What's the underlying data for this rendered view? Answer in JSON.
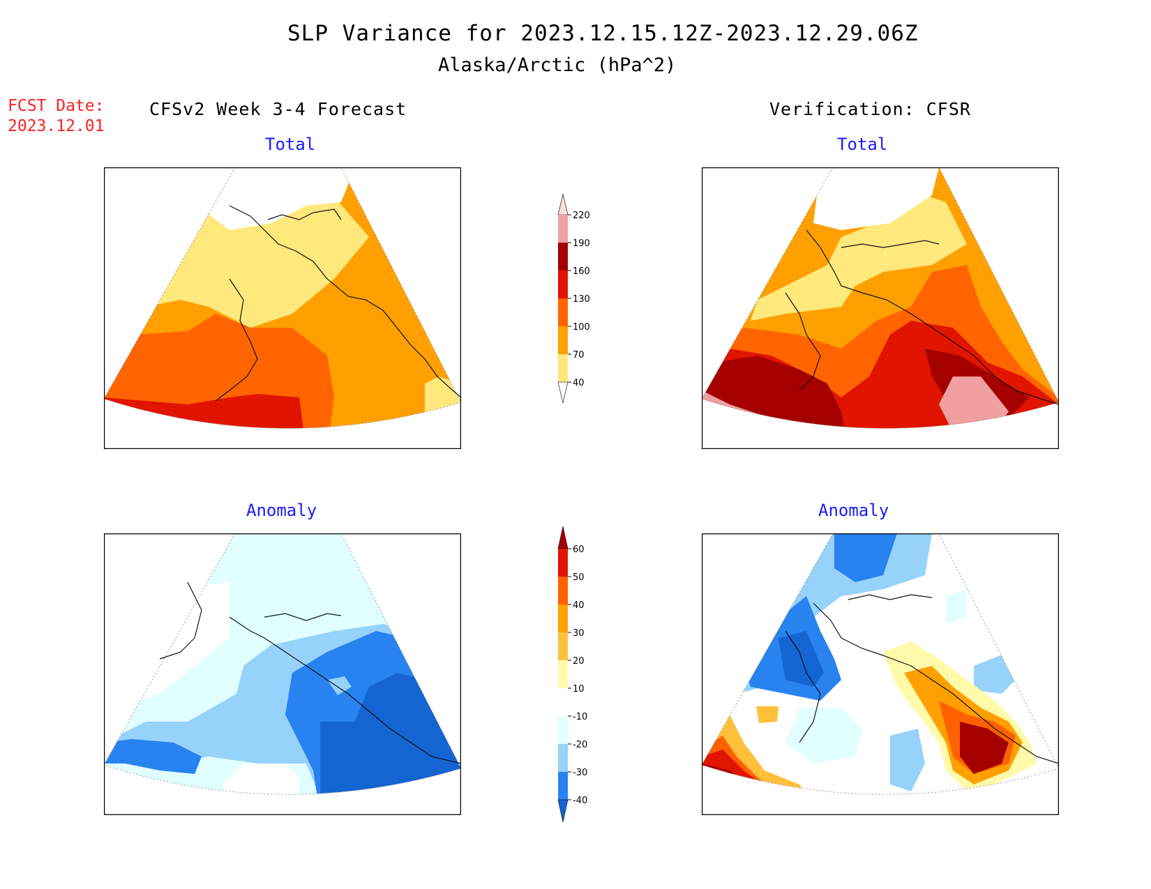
{
  "title": "SLP Variance for 2023.12.15.12Z-2023.12.29.06Z",
  "subtitle": "Alaska/Arctic (hPa^2)",
  "fcst_date": {
    "label": "FCST Date:",
    "value": "2023.12.01"
  },
  "left_header": "CFSv2 Week 3-4 Forecast",
  "right_header": "Verification: CFSR",
  "panels": {
    "fc_total": "Total",
    "ver_total": "Total",
    "fc_anom": "Anomaly",
    "ver_anom": "Anomaly"
  },
  "total_scale": {
    "labels": [
      "40",
      "70",
      "100",
      "130",
      "160",
      "190",
      "220"
    ],
    "colors": [
      "#ffffff",
      "#ffe87c",
      "#ffa000",
      "#ff6400",
      "#e11400",
      "#a50000",
      "#f0a0a0",
      "#fde0e0"
    ]
  },
  "anomaly_scale": {
    "labels": [
      "-40",
      "-30",
      "-20",
      "-10",
      "10",
      "20",
      "30",
      "40",
      "50",
      "60"
    ],
    "colors": [
      "#1464d2",
      "#2882f0",
      "#96d2fa",
      "#e1ffff",
      "#ffffff",
      "#fffaaa",
      "#ffc03c",
      "#ffa000",
      "#ff6000",
      "#e11400",
      "#a50000"
    ]
  }
}
